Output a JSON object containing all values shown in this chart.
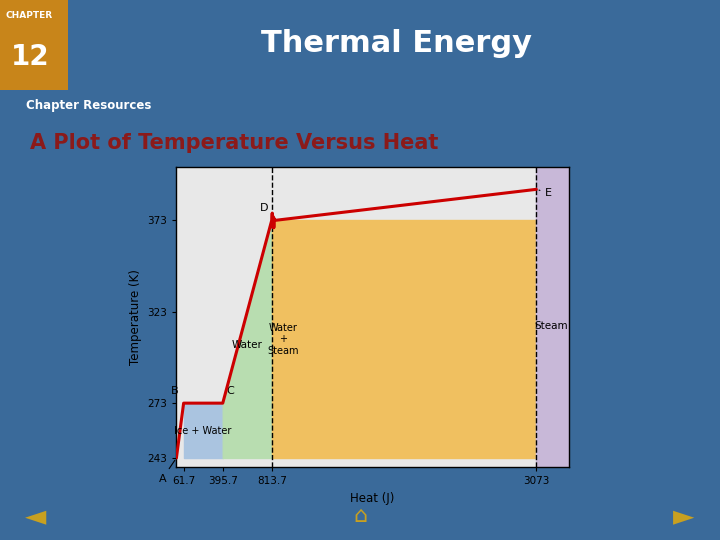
{
  "slide_bg": "#3a6a9a",
  "header_bg": "#8b1a1a",
  "chapter_label": "CHAPTER",
  "chapter_number": "12",
  "header_title": "Thermal Energy",
  "tab_bg": "#7a1515",
  "tab_text": "Chapter Resources",
  "slide_title": "A Plot of Temperature Versus Heat",
  "slide_title_color": "#8b1a1a",
  "content_bg": "#f5e6c8",
  "plot_bg": "#e8e8e8",
  "line_color": "#cc0000",
  "line_width": 2.2,
  "yticks": [
    243,
    273,
    323,
    373
  ],
  "xticks": [
    61.7,
    395.7,
    813.7,
    3073
  ],
  "xlabel": "Heat (J)",
  "ylabel": "Temperature (K)",
  "region_ice_water_color": "#aac4e0",
  "region_water_color": "#b8ddb0",
  "region_water_steam_color": "#f0c060",
  "region_steam_color": "#c8b8d8",
  "dashed_line1_x": 813.7,
  "dashed_line2_x": 3073,
  "xlim": [
    0,
    3350
  ],
  "ylim": [
    238,
    402
  ],
  "bottom_bar_color": "#1a3f6a",
  "arrow_color": "#c8a020",
  "content_border_color": "#8b1a1a",
  "slide_bg_stripe": "#1a3f6a"
}
